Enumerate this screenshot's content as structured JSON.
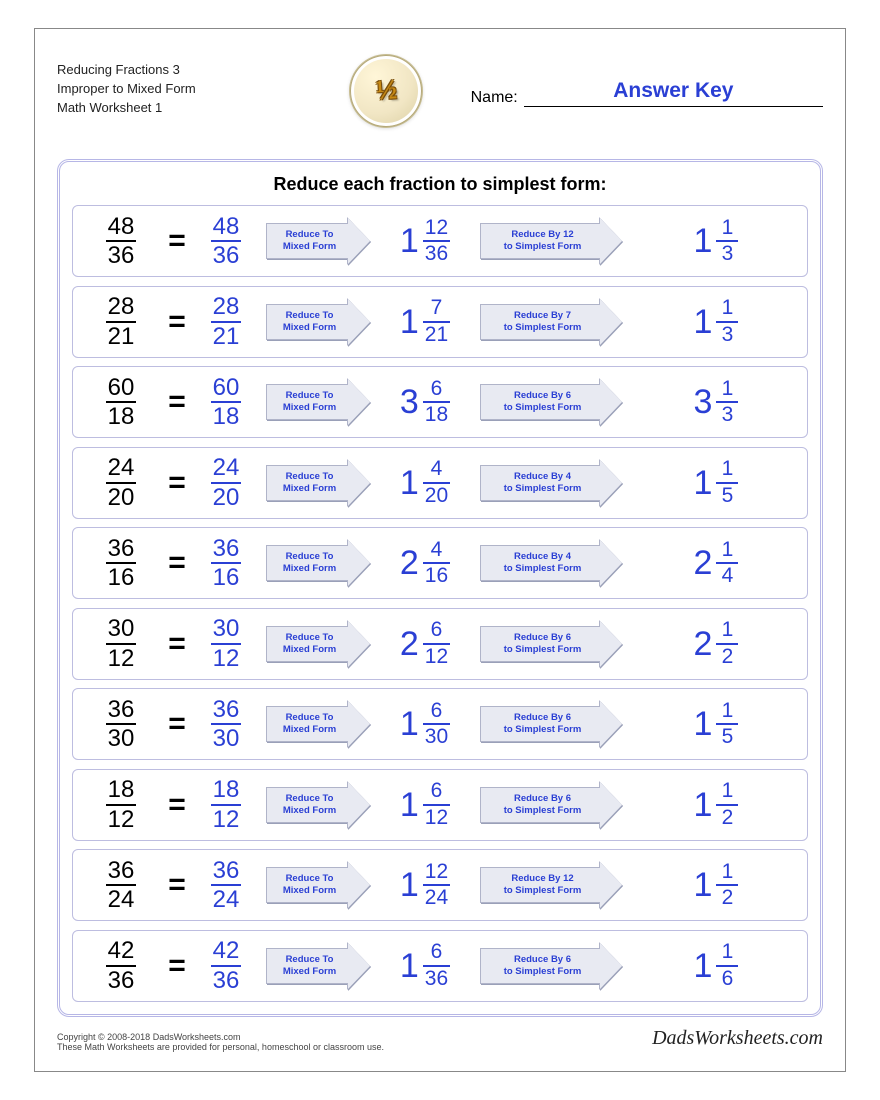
{
  "header": {
    "title_line1": "Reducing Fractions 3",
    "title_line2": "Improper to Mixed Form",
    "title_line3": "Math Worksheet 1",
    "logo_text": "½",
    "name_label": "Name:",
    "name_value": "Answer Key"
  },
  "instruction": "Reduce each fraction to simplest form:",
  "arrow1_line1": "Reduce To",
  "arrow1_line2": "Mixed Form",
  "arrow2_prefix": "Reduce By ",
  "arrow2_line2": "to Simplest Form",
  "colors": {
    "answer": "#2a3fd4",
    "border": "#bdbde0",
    "outer_border": "#b6b6e6",
    "arrow_fill": "#e8eaf2",
    "arrow_border": "#b0b4c9",
    "text": "#000000",
    "background": "#ffffff"
  },
  "problems": [
    {
      "num": "48",
      "den": "36",
      "mix_whole": "1",
      "mix_num": "12",
      "mix_den": "36",
      "reduce_by": "12",
      "final_whole": "1",
      "final_num": "1",
      "final_den": "3"
    },
    {
      "num": "28",
      "den": "21",
      "mix_whole": "1",
      "mix_num": "7",
      "mix_den": "21",
      "reduce_by": "7",
      "final_whole": "1",
      "final_num": "1",
      "final_den": "3"
    },
    {
      "num": "60",
      "den": "18",
      "mix_whole": "3",
      "mix_num": "6",
      "mix_den": "18",
      "reduce_by": "6",
      "final_whole": "3",
      "final_num": "1",
      "final_den": "3"
    },
    {
      "num": "24",
      "den": "20",
      "mix_whole": "1",
      "mix_num": "4",
      "mix_den": "20",
      "reduce_by": "4",
      "final_whole": "1",
      "final_num": "1",
      "final_den": "5"
    },
    {
      "num": "36",
      "den": "16",
      "mix_whole": "2",
      "mix_num": "4",
      "mix_den": "16",
      "reduce_by": "4",
      "final_whole": "2",
      "final_num": "1",
      "final_den": "4"
    },
    {
      "num": "30",
      "den": "12",
      "mix_whole": "2",
      "mix_num": "6",
      "mix_den": "12",
      "reduce_by": "6",
      "final_whole": "2",
      "final_num": "1",
      "final_den": "2"
    },
    {
      "num": "36",
      "den": "30",
      "mix_whole": "1",
      "mix_num": "6",
      "mix_den": "30",
      "reduce_by": "6",
      "final_whole": "1",
      "final_num": "1",
      "final_den": "5"
    },
    {
      "num": "18",
      "den": "12",
      "mix_whole": "1",
      "mix_num": "6",
      "mix_den": "12",
      "reduce_by": "6",
      "final_whole": "1",
      "final_num": "1",
      "final_den": "2"
    },
    {
      "num": "36",
      "den": "24",
      "mix_whole": "1",
      "mix_num": "12",
      "mix_den": "24",
      "reduce_by": "12",
      "final_whole": "1",
      "final_num": "1",
      "final_den": "2"
    },
    {
      "num": "42",
      "den": "36",
      "mix_whole": "1",
      "mix_num": "6",
      "mix_den": "36",
      "reduce_by": "6",
      "final_whole": "1",
      "final_num": "1",
      "final_den": "6"
    }
  ],
  "footer": {
    "copyright": "Copyright © 2008-2018 DadsWorksheets.com",
    "disclaimer": "These Math Worksheets are provided for personal, homeschool or classroom use.",
    "brand": "DadsWorksheets.com"
  }
}
